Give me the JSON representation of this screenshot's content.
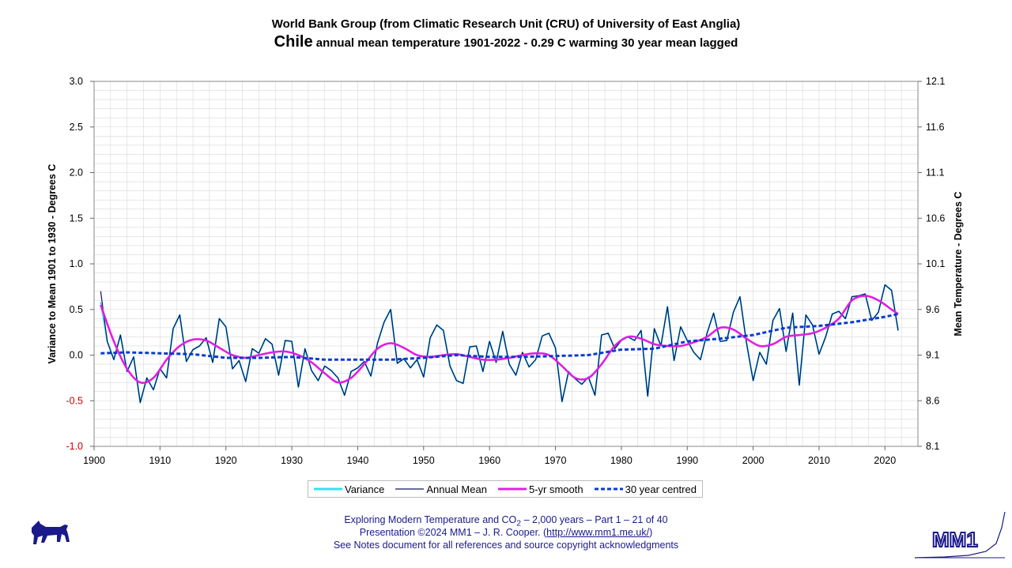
{
  "header": {
    "line1": "World Bank Group (from Climatic Research Unit (CRU) of University of East Anglia)",
    "country": "Chile",
    "line2_rest": "annual mean temperature 1901-2022 - 0.29 C warming 30 year mean lagged"
  },
  "colors": {
    "variance": "#33e0f0",
    "annual": "#0d1466",
    "smooth": "#e020e0",
    "centred": "#0a3ad0",
    "grid": "#d8d8d8",
    "footer": "#1a1a8c"
  },
  "chart_data": {
    "type": "line",
    "title": "Chile annual mean temperature 1901-2022 - 0.29 C warming 30 year mean lagged",
    "xlabel": "",
    "ylabel_left": "Variance to Mean 1901 to 1930 - Degrees C",
    "ylabel_right": "Mean Temperature - Degrees C",
    "xlim": [
      1900,
      2025
    ],
    "ylim": [
      -1.0,
      3.0
    ],
    "ylim_right": [
      8.1,
      12.1
    ],
    "x_ticks": [
      "1900",
      "1910",
      "1920",
      "1930",
      "1940",
      "1950",
      "1960",
      "1970",
      "1980",
      "1990",
      "2000",
      "2010",
      "2020"
    ],
    "y_ticks_left": [
      "3.0",
      "2.5",
      "2.0",
      "1.5",
      "1.0",
      "0.5",
      "0.0",
      "-0.5",
      "-1.0"
    ],
    "y_ticks_right": [
      "12.1",
      "11.6",
      "11.1",
      "10.6",
      "10.1",
      "9.6",
      "9.1",
      "8.6",
      "8.1"
    ],
    "grid": true,
    "legend_position": "bottom",
    "series": [
      {
        "name": "Variance",
        "years_start": 1901,
        "values": [
          0.58,
          0.15,
          -0.05,
          0.22,
          -0.18,
          -0.02,
          -0.52,
          -0.25,
          -0.38,
          -0.15,
          -0.25,
          0.29,
          0.44,
          -0.07,
          0.06,
          0.1,
          0.19,
          -0.08,
          0.4,
          0.31,
          -0.15,
          -0.06,
          -0.29,
          0.07,
          0.02,
          0.18,
          0.12,
          -0.22,
          0.16,
          0.15,
          -0.35,
          0.07,
          -0.17,
          -0.28,
          -0.12,
          -0.17,
          -0.25,
          -0.44,
          -0.18,
          -0.14,
          -0.07,
          -0.23,
          0.13,
          0.36,
          0.5,
          -0.09,
          -0.04,
          -0.14,
          -0.05,
          -0.24,
          0.19,
          0.33,
          0.27,
          -0.12,
          -0.28,
          -0.31,
          0.09,
          0.1,
          -0.18,
          0.15,
          -0.08,
          0.26,
          -0.1,
          -0.22,
          0.03,
          -0.13,
          -0.05,
          0.21,
          0.24,
          0.08,
          -0.51,
          -0.18,
          -0.26,
          -0.32,
          -0.24,
          -0.44,
          0.22,
          0.24,
          0.07,
          0.16,
          0.2,
          0.16,
          0.27,
          -0.45,
          0.29,
          0.1,
          0.53,
          -0.06,
          0.31,
          0.16,
          0.03,
          -0.05,
          0.24,
          0.46,
          0.15,
          0.16,
          0.47,
          0.64,
          0.13,
          -0.28,
          0.03,
          -0.1,
          0.38,
          0.51,
          0.04,
          0.46,
          -0.33,
          0.44,
          0.33,
          0.01,
          0.2,
          0.45,
          0.48,
          0.4,
          0.64,
          0.65,
          0.67,
          0.38,
          0.47,
          0.77,
          0.71,
          0.27
        ]
      },
      {
        "name": "Annual Mean",
        "years_start": 1901,
        "values": [
          0.7,
          0.15,
          -0.05,
          0.22,
          -0.18,
          -0.02,
          -0.52,
          -0.25,
          -0.38,
          -0.15,
          -0.25,
          0.29,
          0.44,
          -0.07,
          0.06,
          0.1,
          0.19,
          -0.08,
          0.4,
          0.31,
          -0.15,
          -0.06,
          -0.29,
          0.07,
          0.02,
          0.18,
          0.12,
          -0.22,
          0.16,
          0.15,
          -0.35,
          0.07,
          -0.17,
          -0.28,
          -0.12,
          -0.17,
          -0.25,
          -0.44,
          -0.18,
          -0.14,
          -0.07,
          -0.23,
          0.13,
          0.36,
          0.5,
          -0.09,
          -0.04,
          -0.14,
          -0.05,
          -0.24,
          0.19,
          0.33,
          0.27,
          -0.12,
          -0.28,
          -0.31,
          0.09,
          0.1,
          -0.18,
          0.15,
          -0.08,
          0.26,
          -0.1,
          -0.22,
          0.03,
          -0.13,
          -0.05,
          0.21,
          0.24,
          0.08,
          -0.51,
          -0.18,
          -0.26,
          -0.32,
          -0.24,
          -0.44,
          0.22,
          0.24,
          0.07,
          0.16,
          0.2,
          0.16,
          0.27,
          -0.45,
          0.29,
          0.1,
          0.53,
          -0.06,
          0.31,
          0.16,
          0.03,
          -0.05,
          0.24,
          0.46,
          0.15,
          0.16,
          0.47,
          0.64,
          0.13,
          -0.28,
          0.03,
          -0.1,
          0.38,
          0.51,
          0.04,
          0.46,
          -0.33,
          0.44,
          0.33,
          0.01,
          0.2,
          0.45,
          0.48,
          0.4,
          0.64,
          0.65,
          0.67,
          0.38,
          0.47,
          0.77,
          0.71,
          0.27
        ]
      },
      {
        "name": "5-yr smooth",
        "x": [
          1901,
          1903,
          1905,
          1907,
          1909,
          1911,
          1913,
          1915,
          1917,
          1919,
          1921,
          1923,
          1925,
          1927,
          1929,
          1931,
          1933,
          1935,
          1937,
          1939,
          1941,
          1943,
          1945,
          1947,
          1949,
          1951,
          1953,
          1955,
          1957,
          1959,
          1961,
          1963,
          1965,
          1967,
          1969,
          1971,
          1973,
          1975,
          1977,
          1979,
          1981,
          1983,
          1985,
          1987,
          1989,
          1991,
          1993,
          1995,
          1997,
          1999,
          2001,
          2003,
          2005,
          2007,
          2009,
          2011,
          2013,
          2015,
          2017,
          2019,
          2021,
          2022
        ],
        "values": [
          0.55,
          0.15,
          -0.15,
          -0.3,
          -0.25,
          -0.05,
          0.1,
          0.17,
          0.16,
          0.08,
          0.0,
          -0.03,
          0.0,
          0.03,
          0.04,
          0.0,
          -0.08,
          -0.2,
          -0.3,
          -0.25,
          -0.1,
          0.07,
          0.13,
          0.08,
          0.0,
          -0.02,
          0.0,
          0.01,
          -0.02,
          -0.05,
          -0.05,
          -0.03,
          0.0,
          0.02,
          0.0,
          -0.12,
          -0.25,
          -0.25,
          -0.1,
          0.1,
          0.2,
          0.18,
          0.12,
          0.1,
          0.1,
          0.14,
          0.2,
          0.3,
          0.28,
          0.18,
          0.1,
          0.12,
          0.2,
          0.22,
          0.24,
          0.3,
          0.4,
          0.6,
          0.65,
          0.6,
          0.5,
          0.45
        ]
      },
      {
        "name": "30 year centred",
        "x": [
          1901,
          1905,
          1910,
          1915,
          1920,
          1925,
          1930,
          1935,
          1940,
          1945,
          1950,
          1955,
          1960,
          1965,
          1970,
          1975,
          1980,
          1985,
          1990,
          1995,
          2000,
          2005,
          2010,
          2015,
          2020,
          2022
        ],
        "values": [
          0.02,
          0.03,
          0.02,
          0.01,
          -0.03,
          -0.03,
          -0.02,
          -0.05,
          -0.05,
          -0.05,
          -0.03,
          0.0,
          -0.02,
          -0.02,
          -0.01,
          0.0,
          0.06,
          0.07,
          0.15,
          0.18,
          0.22,
          0.3,
          0.32,
          0.36,
          0.42,
          0.45
        ]
      }
    ]
  },
  "legend": {
    "items": [
      "Variance",
      "Annual Mean",
      "5-yr smooth",
      "30 year centred"
    ]
  },
  "footer": {
    "line1_prefix": "Exploring Modern Temperature and CO",
    "line1_sub": "2",
    "line1_suffix": " – 2,000 years – Part 1 – 21 of 40",
    "line2_prefix": "Presentation ©2024 MM1 – J. R. Cooper. (",
    "line2_link": "http://www.mm1.me.uk/",
    "line2_suffix": ")",
    "line3": "See Notes document for all references and source copyright acknowledgments"
  },
  "logo": {
    "text": "MM1"
  }
}
